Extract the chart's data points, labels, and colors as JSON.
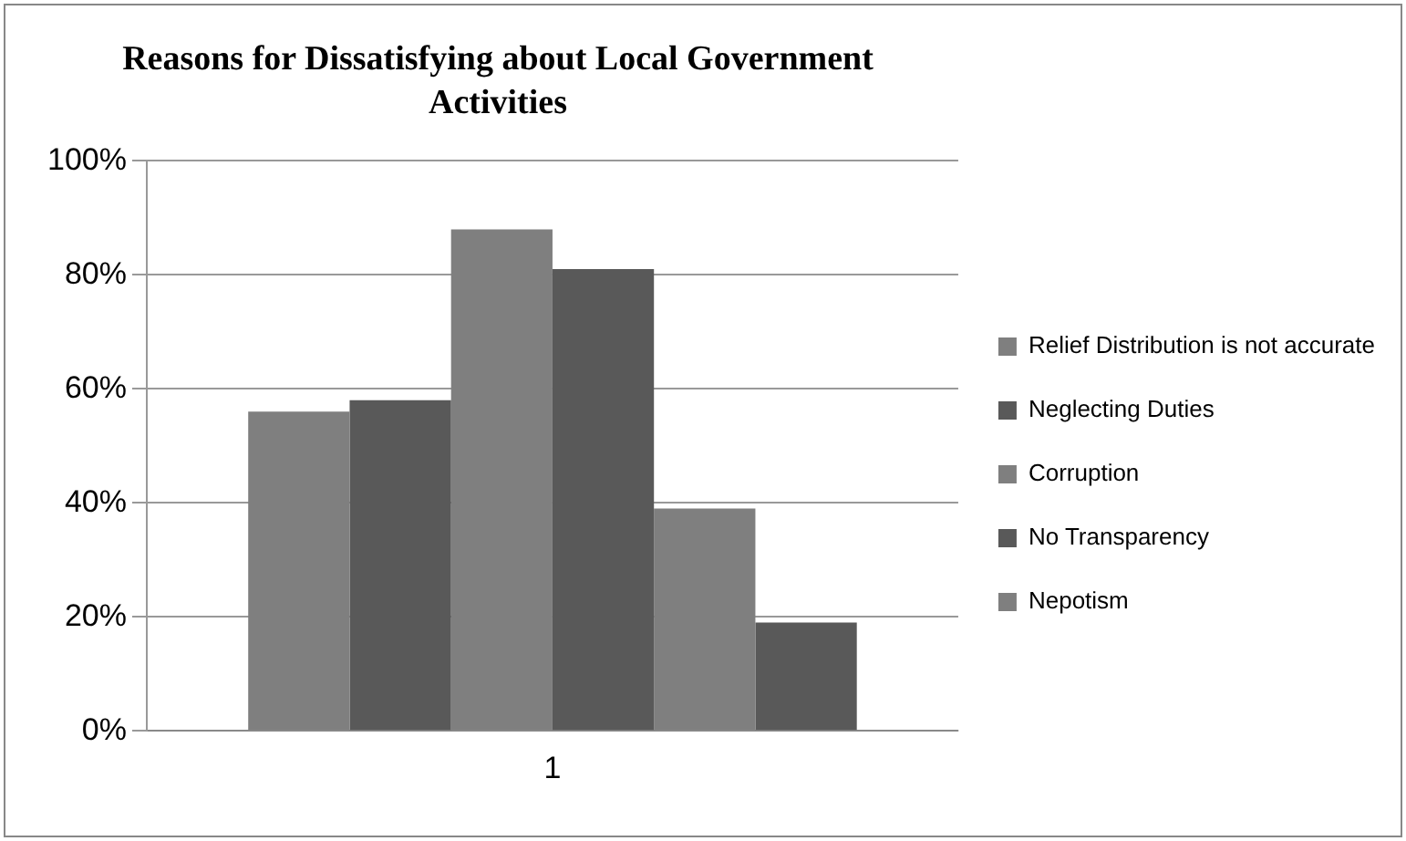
{
  "chart_data": {
    "type": "bar",
    "title": "Reasons for Dissatisfying  about Local Government Activities",
    "categories": [
      "1"
    ],
    "series": [
      {
        "name": "Relief Distribution is not accurate",
        "color": "#7f7f7f",
        "values": [
          0.56
        ]
      },
      {
        "name": "Neglecting Duties",
        "color": "#595959",
        "values": [
          0.58
        ]
      },
      {
        "name": "Corruption",
        "color": "#7f7f7f",
        "values": [
          0.88
        ]
      },
      {
        "name": "No Transparency",
        "color": "#595959",
        "values": [
          0.81
        ]
      },
      {
        "name": "Nepotism",
        "color": "#7f7f7f",
        "values": [
          0.39
        ]
      },
      {
        "color": "#595959",
        "values": [
          0.19
        ]
      }
    ],
    "ylim": [
      0,
      1
    ],
    "yticks": [
      {
        "value": 0,
        "label": "0%"
      },
      {
        "value": 0.2,
        "label": "20%"
      },
      {
        "value": 0.4,
        "label": "40%"
      },
      {
        "value": 0.6,
        "label": "60%"
      },
      {
        "value": 0.8,
        "label": "80%"
      },
      {
        "value": 1,
        "label": "100%"
      }
    ],
    "grid": "y",
    "legend": "right"
  }
}
